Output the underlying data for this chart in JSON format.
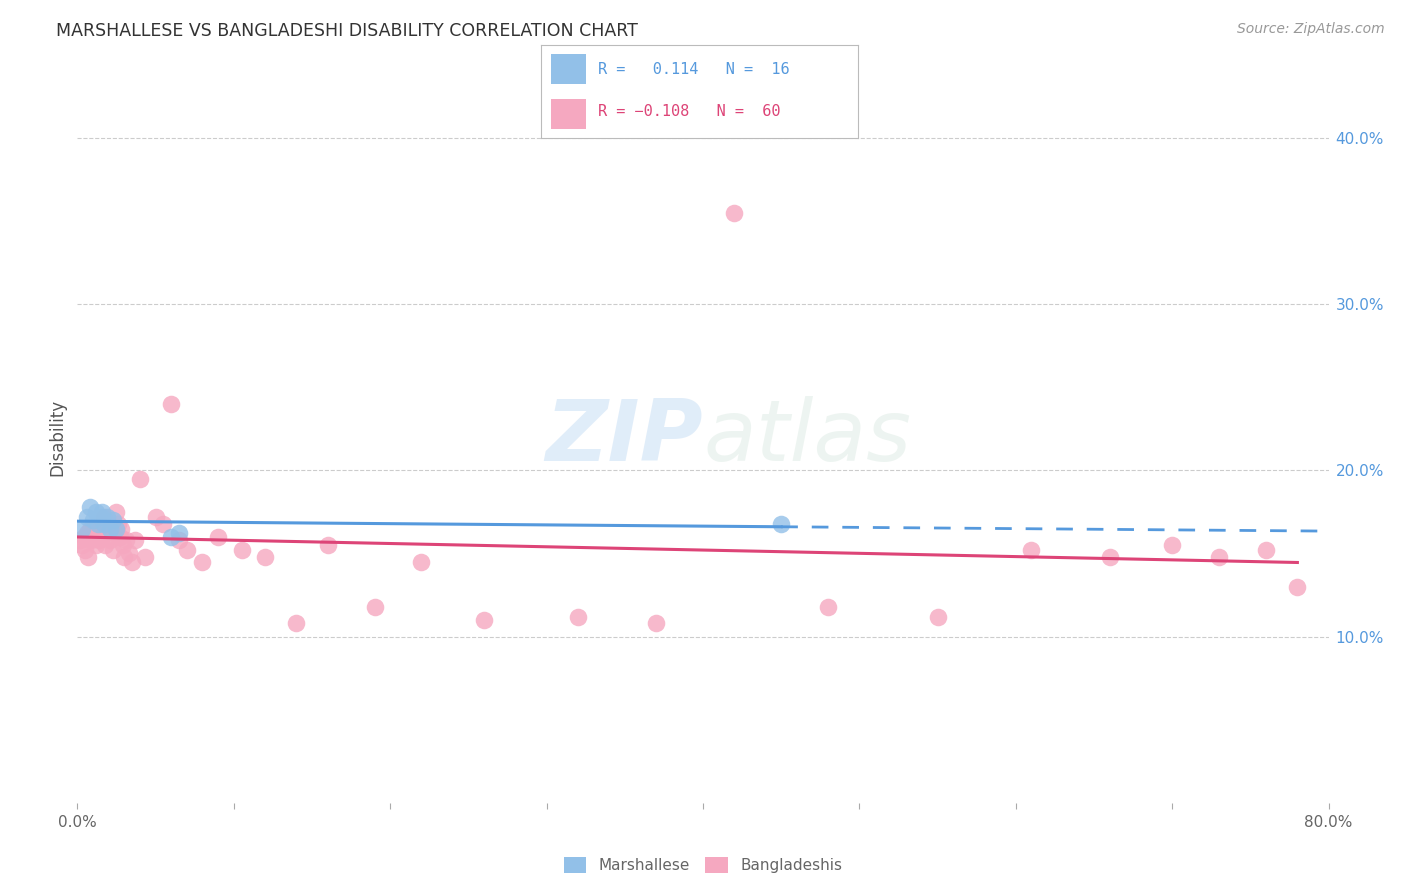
{
  "title": "MARSHALLESE VS BANGLADESHI DISABILITY CORRELATION CHART",
  "source": "Source: ZipAtlas.com",
  "ylabel": "Disability",
  "xlim": [
    0.0,
    0.8
  ],
  "ylim": [
    0.0,
    0.44
  ],
  "yticks_right": [
    0.1,
    0.2,
    0.3,
    0.4
  ],
  "yticklabels_right": [
    "10.0%",
    "20.0%",
    "30.0%",
    "40.0%"
  ],
  "grid_color": "#cccccc",
  "background_color": "#ffffff",
  "blue_color": "#92c0e8",
  "pink_color": "#f5a8c0",
  "blue_line_color": "#5599dd",
  "pink_line_color": "#dd4477",
  "marshallese_x": [
    0.003,
    0.006,
    0.008,
    0.01,
    0.012,
    0.013,
    0.015,
    0.016,
    0.017,
    0.019,
    0.021,
    0.023,
    0.025,
    0.06,
    0.065,
    0.45
  ],
  "marshallese_y": [
    0.165,
    0.172,
    0.178,
    0.17,
    0.175,
    0.168,
    0.172,
    0.175,
    0.168,
    0.172,
    0.165,
    0.17,
    0.165,
    0.16,
    0.162,
    0.168
  ],
  "bangladeshi_x": [
    0.002,
    0.003,
    0.004,
    0.005,
    0.006,
    0.007,
    0.008,
    0.009,
    0.01,
    0.011,
    0.012,
    0.013,
    0.014,
    0.015,
    0.016,
    0.017,
    0.018,
    0.019,
    0.02,
    0.021,
    0.022,
    0.023,
    0.024,
    0.025,
    0.026,
    0.027,
    0.028,
    0.029,
    0.03,
    0.031,
    0.033,
    0.035,
    0.037,
    0.04,
    0.043,
    0.05,
    0.055,
    0.06,
    0.065,
    0.07,
    0.08,
    0.09,
    0.105,
    0.12,
    0.14,
    0.16,
    0.19,
    0.22,
    0.26,
    0.32,
    0.37,
    0.42,
    0.48,
    0.55,
    0.61,
    0.66,
    0.7,
    0.73,
    0.76,
    0.78
  ],
  "bangladeshi_y": [
    0.158,
    0.155,
    0.16,
    0.152,
    0.162,
    0.148,
    0.165,
    0.158,
    0.165,
    0.162,
    0.155,
    0.16,
    0.158,
    0.162,
    0.16,
    0.172,
    0.155,
    0.165,
    0.168,
    0.158,
    0.165,
    0.152,
    0.162,
    0.175,
    0.168,
    0.16,
    0.165,
    0.155,
    0.148,
    0.158,
    0.15,
    0.145,
    0.158,
    0.195,
    0.148,
    0.172,
    0.168,
    0.24,
    0.158,
    0.152,
    0.145,
    0.16,
    0.152,
    0.148,
    0.108,
    0.155,
    0.118,
    0.145,
    0.11,
    0.112,
    0.108,
    0.355,
    0.118,
    0.112,
    0.152,
    0.148,
    0.155,
    0.148,
    0.152,
    0.13
  ],
  "blue_R": 0.114,
  "blue_N": 16,
  "pink_R": -0.108,
  "pink_N": 60
}
